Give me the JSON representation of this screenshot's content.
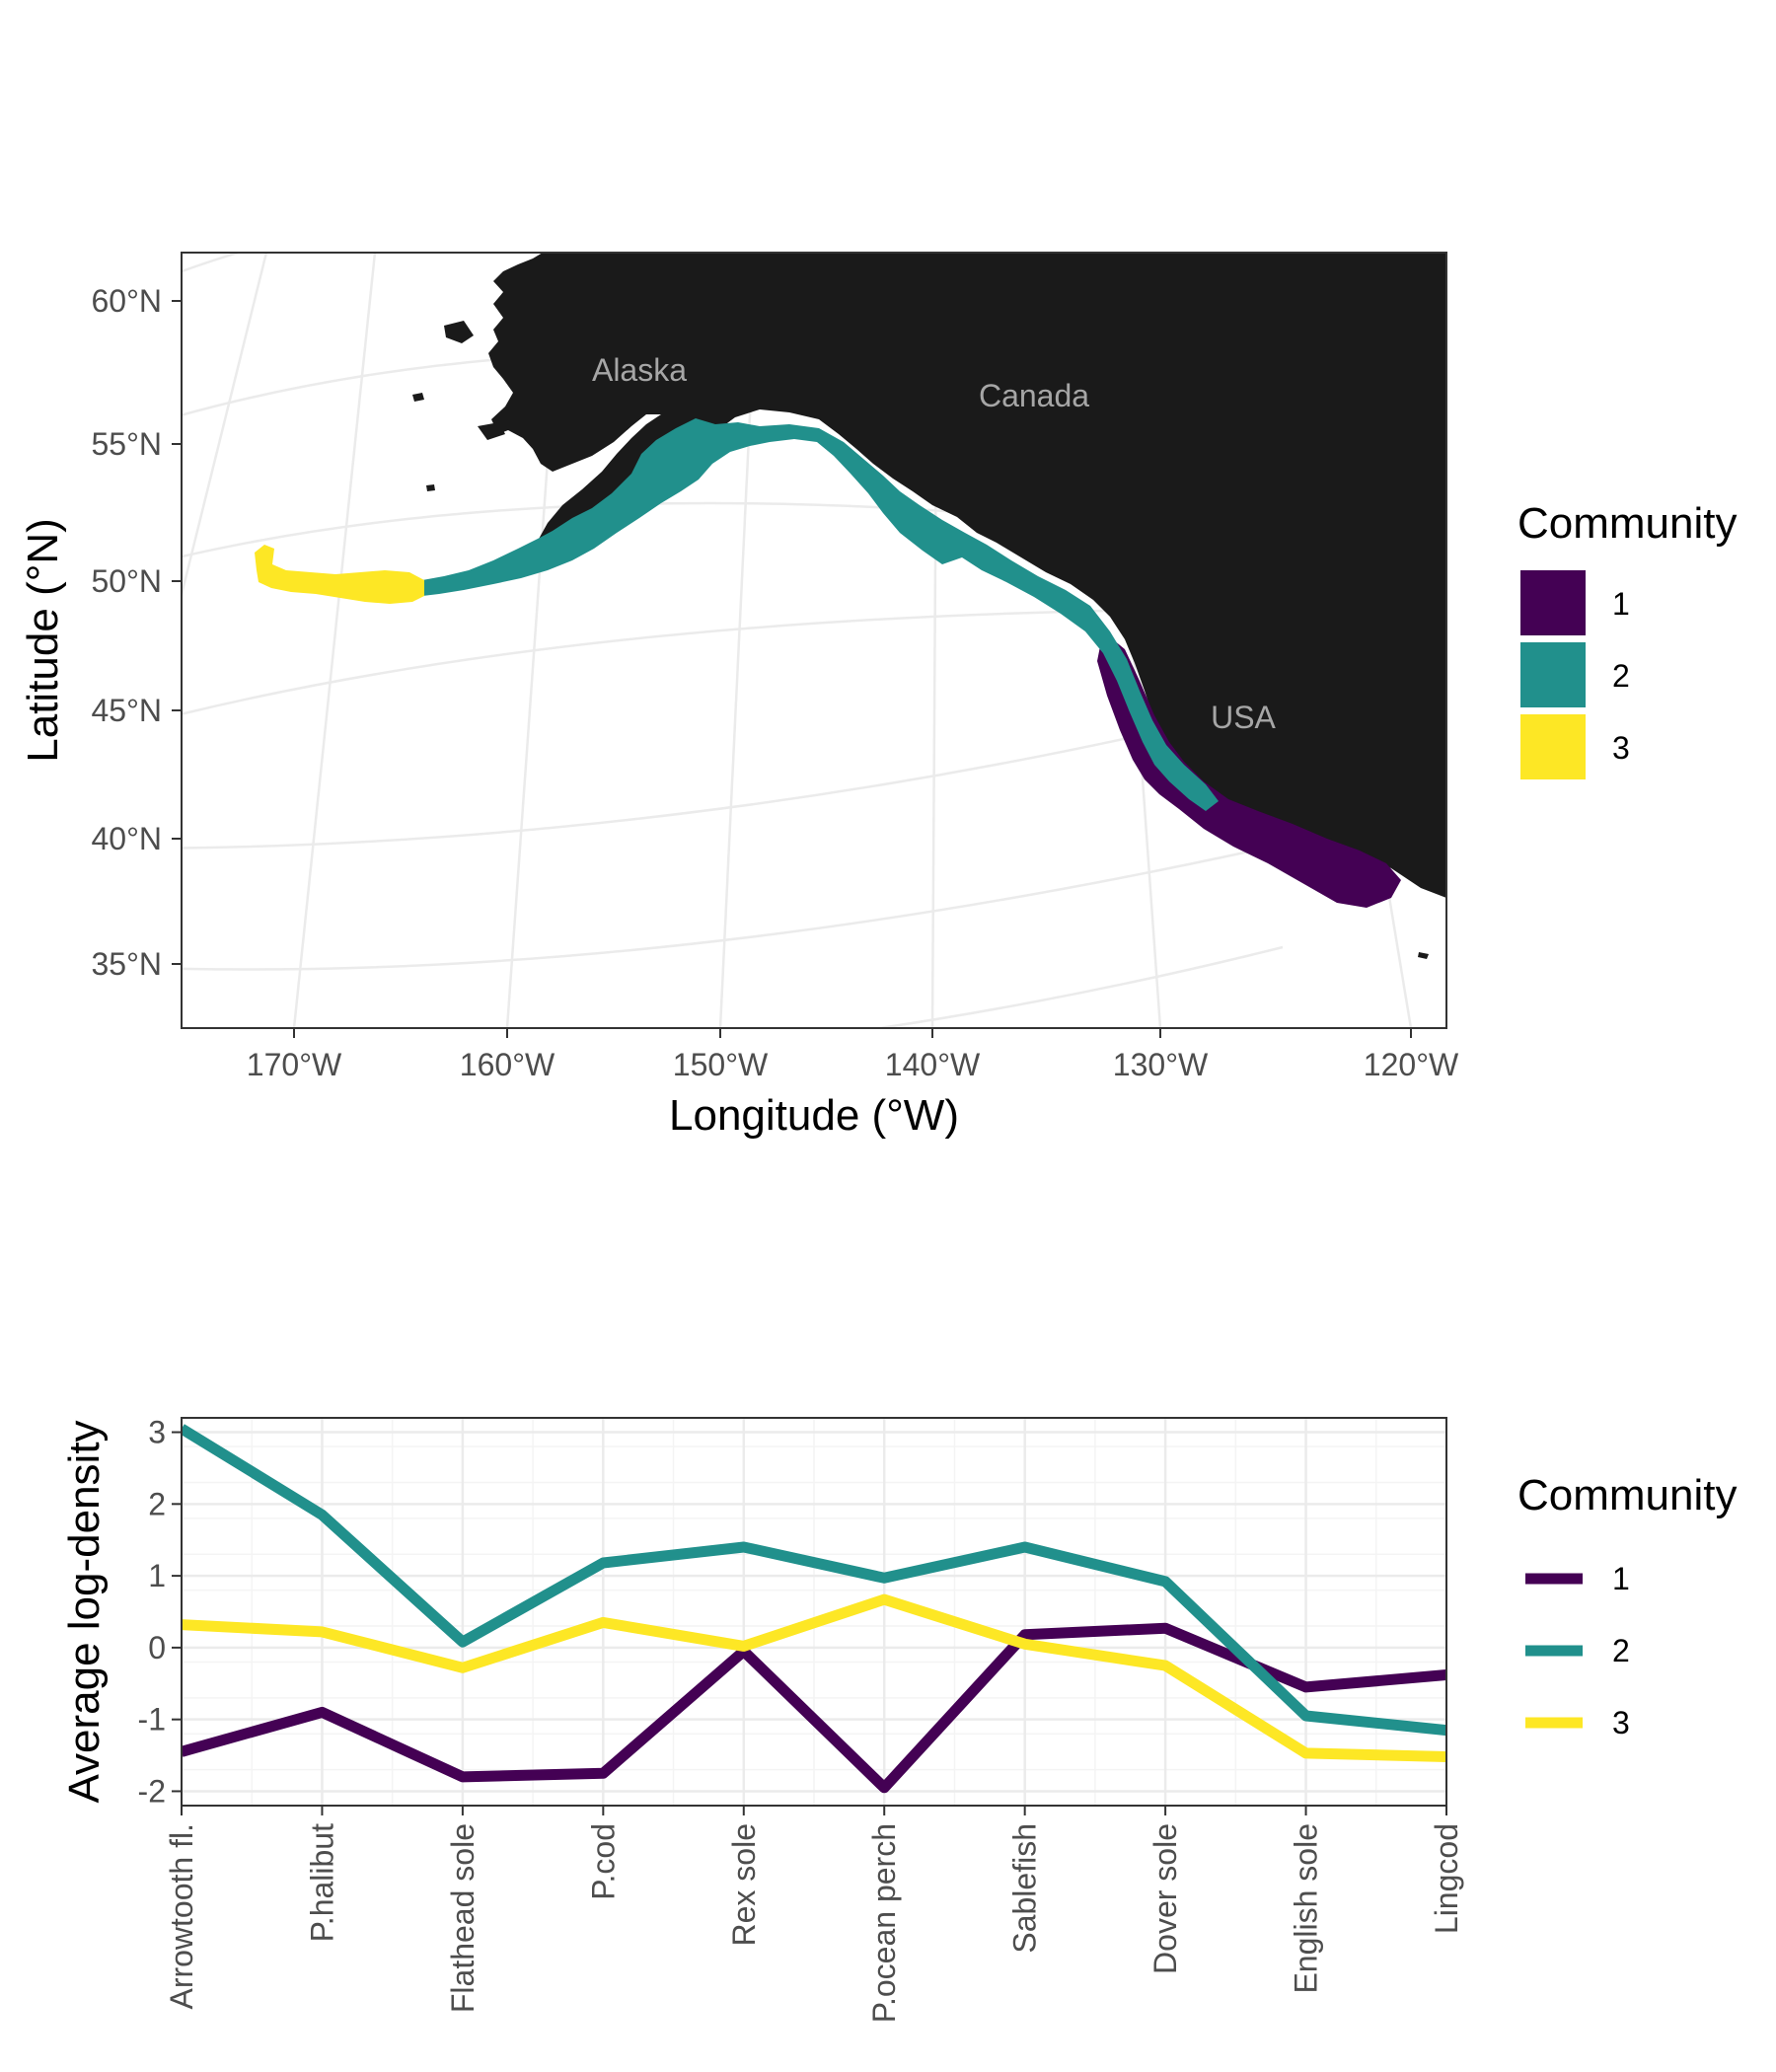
{
  "colors": {
    "1": "#440154",
    "2": "#21908c",
    "3": "#fde725",
    "land": "#1a1a1a"
  },
  "map": {
    "xlabel": "Longitude (°W)",
    "ylabel": "Latitude (°N)",
    "lat_ticks": [
      "60°N",
      "55°N",
      "50°N",
      "45°N",
      "40°N",
      "35°N"
    ],
    "lon_ticks": [
      "170°W",
      "160°W",
      "150°W",
      "140°W",
      "130°W",
      "120°W"
    ],
    "places": {
      "alaska": "Alaska",
      "canada": "Canada",
      "usa": "USA"
    },
    "legend": {
      "title": "Community",
      "items": [
        "1",
        "2",
        "3"
      ]
    }
  },
  "chart_data": {
    "type": "line",
    "categories": [
      "Arrowtooth fl.",
      "P.halibut",
      "Flathead sole",
      "P.cod",
      "Rex sole",
      "P.ocean perch",
      "Sablefish",
      "Dover sole",
      "English sole",
      "Lingcod"
    ],
    "series": [
      {
        "name": "1",
        "color": "#440154",
        "values": [
          -1.45,
          -0.9,
          -1.8,
          -1.75,
          -0.05,
          -1.95,
          0.18,
          0.27,
          -0.55,
          -0.38
        ]
      },
      {
        "name": "2",
        "color": "#21908c",
        "values": [
          3.05,
          1.85,
          0.08,
          1.18,
          1.4,
          0.97,
          1.4,
          0.92,
          -0.95,
          -1.15
        ]
      },
      {
        "name": "3",
        "color": "#fde725",
        "values": [
          0.32,
          0.22,
          -0.28,
          0.35,
          0.02,
          0.67,
          0.05,
          -0.25,
          -1.47,
          -1.52
        ]
      }
    ],
    "xlabel": "",
    "ylabel": "Average log-density",
    "yticks": [
      -2,
      -1,
      0,
      1,
      2,
      3
    ],
    "ylim": [
      -2.2,
      3.2
    ],
    "grid": true,
    "legend": {
      "title": "Community",
      "position": "right"
    }
  }
}
